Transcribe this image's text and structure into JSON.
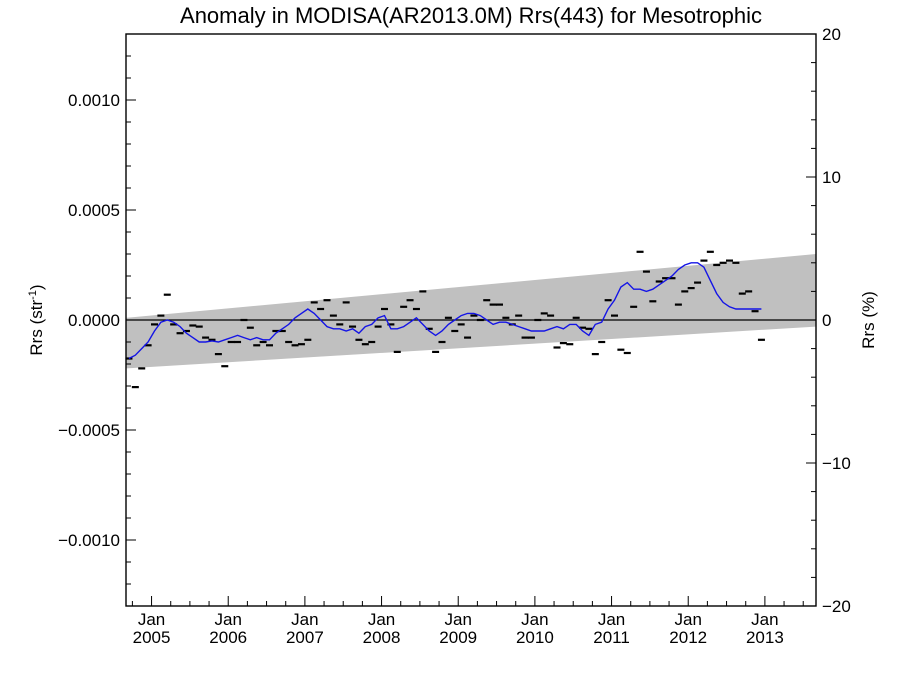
{
  "chart_data": {
    "type": "line",
    "title": "Anomaly in MODISA(AR2013.0M) Rrs(443) for Mesotrophic",
    "ylabel": "Rrs (str",
    "ylabel_sup": "-1",
    "ylabel_close": ")",
    "ylabel_right": "Rrs (%)",
    "ylim": [
      -0.0013,
      0.0013
    ],
    "ylim_right": [
      -20,
      20
    ],
    "xlim": [
      "2004-09-01",
      "2013-09-01"
    ],
    "y_ticks": [
      "0.0010",
      "0.0005",
      "0.0000",
      "−0.0005",
      "−0.0010"
    ],
    "y_tick_values": [
      0.001,
      0.0005,
      0,
      -0.0005,
      -0.001
    ],
    "y_right_ticks": [
      "20",
      "10",
      "0",
      "−10",
      "−20"
    ],
    "y_right_tick_values": [
      20,
      10,
      0,
      -10,
      -20
    ],
    "x_ticks": [
      {
        "month": "Jan",
        "year": "2005",
        "date": "2005-01-01"
      },
      {
        "month": "Jan",
        "year": "2006",
        "date": "2006-01-01"
      },
      {
        "month": "Jan",
        "year": "2007",
        "date": "2007-01-01"
      },
      {
        "month": "Jan",
        "year": "2008",
        "date": "2008-01-01"
      },
      {
        "month": "Jan",
        "year": "2009",
        "date": "2009-01-01"
      },
      {
        "month": "Jan",
        "year": "2010",
        "date": "2010-01-01"
      },
      {
        "month": "Jan",
        "year": "2011",
        "date": "2011-01-01"
      },
      {
        "month": "Jan",
        "year": "2012",
        "date": "2012-01-01"
      },
      {
        "month": "Jan",
        "year": "2013",
        "date": "2013-01-01"
      }
    ],
    "zero_line": 0,
    "band": {
      "color": "#c0c0c0",
      "start": {
        "date": "2004-09-01",
        "low": -0.00022,
        "high": 1e-05
      },
      "end": {
        "date": "2013-09-01",
        "low": -3e-05,
        "high": 0.0003
      }
    },
    "series": [
      {
        "style": "dash-markers",
        "color": "#000000",
        "points": [
          [
            "2004-09",
            -0.000175
          ],
          [
            "2004-10",
            -0.000305
          ],
          [
            "2004-11",
            -0.00022
          ],
          [
            "2004-12",
            -0.000115
          ],
          [
            "2005-01",
            -2e-05
          ],
          [
            "2005-02",
            2e-05
          ],
          [
            "2005-03",
            0.000115
          ],
          [
            "2005-04",
            -2e-05
          ],
          [
            "2005-05",
            -6e-05
          ],
          [
            "2005-06",
            -5e-05
          ],
          [
            "2005-07",
            -2.5e-05
          ],
          [
            "2005-08",
            -3e-05
          ],
          [
            "2005-09",
            -8e-05
          ],
          [
            "2005-10",
            -9e-05
          ],
          [
            "2005-11",
            -0.000155
          ],
          [
            "2005-12",
            -0.00021
          ],
          [
            "2006-01",
            -0.0001
          ],
          [
            "2006-02",
            -0.0001
          ],
          [
            "2006-03",
            0.0
          ],
          [
            "2006-04",
            -3.5e-05
          ],
          [
            "2006-05",
            -0.000115
          ],
          [
            "2006-06",
            -0.0001
          ],
          [
            "2006-07",
            -0.000115
          ],
          [
            "2006-08",
            -5e-05
          ],
          [
            "2006-09",
            -5e-05
          ],
          [
            "2006-10",
            -0.0001
          ],
          [
            "2006-11",
            -0.000115
          ],
          [
            "2006-12",
            -0.00011
          ],
          [
            "2007-01",
            -9e-05
          ],
          [
            "2007-02",
            8e-05
          ],
          [
            "2007-03",
            5e-05
          ],
          [
            "2007-04",
            9e-05
          ],
          [
            "2007-05",
            2e-05
          ],
          [
            "2007-06",
            -2e-05
          ],
          [
            "2007-07",
            8e-05
          ],
          [
            "2007-08",
            -3e-05
          ],
          [
            "2007-09",
            -9e-05
          ],
          [
            "2007-10",
            -0.00011
          ],
          [
            "2007-11",
            -0.0001
          ],
          [
            "2007-12",
            -3e-05
          ],
          [
            "2008-01",
            5e-05
          ],
          [
            "2008-02",
            -2e-05
          ],
          [
            "2008-03",
            -0.000145
          ],
          [
            "2008-04",
            6e-05
          ],
          [
            "2008-05",
            9e-05
          ],
          [
            "2008-06",
            5e-05
          ],
          [
            "2008-07",
            0.00013
          ],
          [
            "2008-08",
            -4e-05
          ],
          [
            "2008-09",
            -0.000145
          ],
          [
            "2008-10",
            -0.0001
          ],
          [
            "2008-11",
            1e-05
          ],
          [
            "2008-12",
            -5e-05
          ],
          [
            "2009-01",
            -2e-05
          ],
          [
            "2009-02",
            -8e-05
          ],
          [
            "2009-03",
            2e-05
          ],
          [
            "2009-04",
            0.0
          ],
          [
            "2009-05",
            9e-05
          ],
          [
            "2009-06",
            7e-05
          ],
          [
            "2009-07",
            7e-05
          ],
          [
            "2009-08",
            1e-05
          ],
          [
            "2009-09",
            -2e-05
          ],
          [
            "2009-10",
            2e-05
          ],
          [
            "2009-11",
            -8e-05
          ],
          [
            "2009-12",
            -8e-05
          ],
          [
            "2010-01",
            0.0
          ],
          [
            "2010-02",
            3e-05
          ],
          [
            "2010-03",
            2e-05
          ],
          [
            "2010-04",
            -0.000125
          ],
          [
            "2010-05",
            -0.000105
          ],
          [
            "2010-06",
            -0.00011
          ],
          [
            "2010-07",
            1e-05
          ],
          [
            "2010-08",
            -3.5e-05
          ],
          [
            "2010-09",
            -4e-05
          ],
          [
            "2010-10",
            -0.000155
          ],
          [
            "2010-11",
            -0.0001
          ],
          [
            "2010-12",
            9e-05
          ],
          [
            "2011-01",
            2e-05
          ],
          [
            "2011-02",
            -0.000135
          ],
          [
            "2011-03",
            -0.00015
          ],
          [
            "2011-04",
            6e-05
          ],
          [
            "2011-05",
            0.00031
          ],
          [
            "2011-06",
            0.00022
          ],
          [
            "2011-07",
            8.5e-05
          ],
          [
            "2011-08",
            0.000175
          ],
          [
            "2011-09",
            0.00019
          ],
          [
            "2011-10",
            0.00019
          ],
          [
            "2011-11",
            7e-05
          ],
          [
            "2011-12",
            0.00013
          ],
          [
            "2012-01",
            0.000145
          ],
          [
            "2012-02",
            0.00017
          ],
          [
            "2012-03",
            0.00027
          ],
          [
            "2012-04",
            0.00031
          ],
          [
            "2012-05",
            0.00025
          ],
          [
            "2012-06",
            0.00026
          ],
          [
            "2012-07",
            0.00027
          ],
          [
            "2012-08",
            0.00026
          ],
          [
            "2012-09",
            0.00012
          ],
          [
            "2012-10",
            0.00013
          ],
          [
            "2012-11",
            4e-05
          ],
          [
            "2012-12",
            -9e-05
          ]
        ]
      },
      {
        "style": "line",
        "color": "#1414e6",
        "points": [
          [
            "2004-09",
            -0.000175
          ],
          [
            "2004-10",
            -0.00016
          ],
          [
            "2004-11",
            -0.00013
          ],
          [
            "2004-12",
            -0.0001
          ],
          [
            "2005-01",
            -5e-05
          ],
          [
            "2005-02",
            -1e-05
          ],
          [
            "2005-03",
            0.0
          ],
          [
            "2005-04",
            -1e-05
          ],
          [
            "2005-05",
            -3e-05
          ],
          [
            "2005-06",
            -6e-05
          ],
          [
            "2005-07",
            -8e-05
          ],
          [
            "2005-08",
            -0.0001
          ],
          [
            "2005-09",
            -0.0001
          ],
          [
            "2005-10",
            -9.5e-05
          ],
          [
            "2005-11",
            -0.0001
          ],
          [
            "2005-12",
            -9e-05
          ],
          [
            "2006-01",
            -8e-05
          ],
          [
            "2006-02",
            -7e-05
          ],
          [
            "2006-03",
            -8e-05
          ],
          [
            "2006-04",
            -9e-05
          ],
          [
            "2006-05",
            -8e-05
          ],
          [
            "2006-06",
            -9e-05
          ],
          [
            "2006-07",
            -9e-05
          ],
          [
            "2006-08",
            -6e-05
          ],
          [
            "2006-09",
            -4e-05
          ],
          [
            "2006-10",
            -2e-05
          ],
          [
            "2006-11",
            1e-05
          ],
          [
            "2006-12",
            3e-05
          ],
          [
            "2007-01",
            5e-05
          ],
          [
            "2007-02",
            3e-05
          ],
          [
            "2007-03",
            0.0
          ],
          [
            "2007-04",
            -3e-05
          ],
          [
            "2007-05",
            -4e-05
          ],
          [
            "2007-06",
            -4e-05
          ],
          [
            "2007-07",
            -5e-05
          ],
          [
            "2007-08",
            -4e-05
          ],
          [
            "2007-09",
            -6e-05
          ],
          [
            "2007-10",
            -3e-05
          ],
          [
            "2007-11",
            -2e-05
          ],
          [
            "2007-12",
            1e-05
          ],
          [
            "2008-01",
            2e-05
          ],
          [
            "2008-02",
            -4e-05
          ],
          [
            "2008-03",
            -4e-05
          ],
          [
            "2008-04",
            -3e-05
          ],
          [
            "2008-05",
            -1e-05
          ],
          [
            "2008-06",
            1e-05
          ],
          [
            "2008-07",
            -2e-05
          ],
          [
            "2008-08",
            -5e-05
          ],
          [
            "2008-09",
            -7e-05
          ],
          [
            "2008-10",
            -5e-05
          ],
          [
            "2008-11",
            -2e-05
          ],
          [
            "2008-12",
            0.0
          ],
          [
            "2009-01",
            2e-05
          ],
          [
            "2009-02",
            3e-05
          ],
          [
            "2009-03",
            3e-05
          ],
          [
            "2009-04",
            2e-05
          ],
          [
            "2009-05",
            0.0
          ],
          [
            "2009-06",
            -2e-05
          ],
          [
            "2009-07",
            -1e-05
          ],
          [
            "2009-08",
            -1e-05
          ],
          [
            "2009-09",
            -2e-05
          ],
          [
            "2009-10",
            -3e-05
          ],
          [
            "2009-11",
            -4e-05
          ],
          [
            "2009-12",
            -5e-05
          ],
          [
            "2010-01",
            -5e-05
          ],
          [
            "2010-02",
            -5e-05
          ],
          [
            "2010-03",
            -4e-05
          ],
          [
            "2010-04",
            -3e-05
          ],
          [
            "2010-05",
            -4e-05
          ],
          [
            "2010-06",
            -2e-05
          ],
          [
            "2010-07",
            -2e-05
          ],
          [
            "2010-08",
            -5e-05
          ],
          [
            "2010-09",
            -7e-05
          ],
          [
            "2010-10",
            -2e-05
          ],
          [
            "2010-11",
            -1e-05
          ],
          [
            "2010-12",
            5e-05
          ],
          [
            "2011-01",
            9e-05
          ],
          [
            "2011-02",
            0.00015
          ],
          [
            "2011-03",
            0.00017
          ],
          [
            "2011-04",
            0.00014
          ],
          [
            "2011-05",
            0.00014
          ],
          [
            "2011-06",
            0.00013
          ],
          [
            "2011-07",
            0.00014
          ],
          [
            "2011-08",
            0.00016
          ],
          [
            "2011-09",
            0.00018
          ],
          [
            "2011-10",
            0.0002
          ],
          [
            "2011-11",
            0.00023
          ],
          [
            "2011-12",
            0.00025
          ],
          [
            "2012-01",
            0.00026
          ],
          [
            "2012-02",
            0.00026
          ],
          [
            "2012-03",
            0.00024
          ],
          [
            "2012-04",
            0.00018
          ],
          [
            "2012-05",
            0.00012
          ],
          [
            "2012-06",
            8e-05
          ],
          [
            "2012-07",
            6e-05
          ],
          [
            "2012-08",
            5e-05
          ],
          [
            "2012-09",
            5e-05
          ],
          [
            "2012-10",
            5e-05
          ],
          [
            "2012-11",
            5e-05
          ],
          [
            "2012-12",
            5e-05
          ]
        ]
      }
    ],
    "grid": false,
    "legend": "none"
  }
}
